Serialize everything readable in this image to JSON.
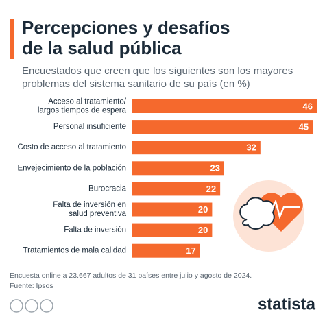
{
  "chart_data": {
    "type": "bar",
    "orientation": "horizontal",
    "title": [
      "Percepciones y desafíos",
      "de la salud pública"
    ],
    "subtitle": [
      "Encuestados que creen que los siguientes son los mayores",
      "problemas del sistema sanitario de su país (en %)"
    ],
    "categories": [
      "Acceso al tratamiento/\nlargos tiempos de espera",
      "Personal insuficiente",
      "Costo de acceso al tratamiento",
      "Envejecimiento de la población",
      "Burocracia",
      "Falta de inversión en\nsalud preventiva",
      "Falta de inversión",
      "Tratamientos de mala calidad"
    ],
    "values": [
      46,
      45,
      32,
      23,
      22,
      20,
      20,
      17
    ],
    "color": "#f5692d",
    "notes": [
      "Encuesta online a 23.667 adultos de 31 países entre julio y agosto de 2024.",
      "Fuente: Ipsos"
    ],
    "brand": "statista"
  }
}
